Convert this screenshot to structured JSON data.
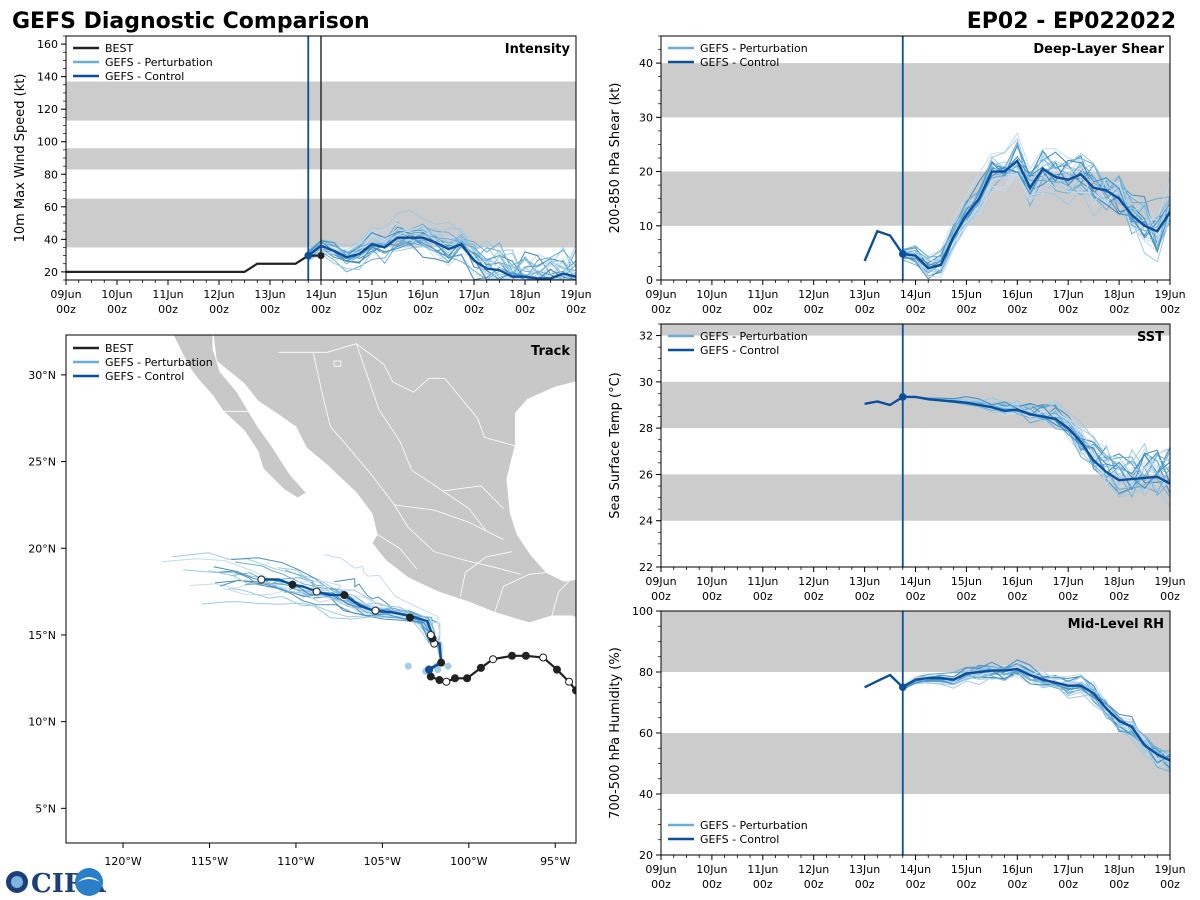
{
  "header": {
    "left_title": "GEFS Diagnostic Comparison",
    "right_title": "EP02 - EP022022"
  },
  "colors": {
    "best": "#222222",
    "perturbation": "#6aaed6",
    "control": "#0b4f9c",
    "band": "#cccccc",
    "land": "#c8c8c8"
  },
  "time_axis": {
    "labels_top": [
      "09Jun",
      "10Jun",
      "11Jun",
      "12Jun",
      "13Jun",
      "14Jun",
      "15Jun",
      "16Jun",
      "17Jun",
      "18Jun",
      "19Jun"
    ],
    "labels_bottom": [
      "00z",
      "00z",
      "00z",
      "00z",
      "00z",
      "00z",
      "00z",
      "00z",
      "00z",
      "00z",
      "00z"
    ],
    "init_day": 4.75,
    "best_end_day": 5.0
  },
  "legend": {
    "best": "BEST",
    "perturbation": "GEFS - Perturbation",
    "control": "GEFS - Control"
  },
  "logo": {
    "text": "CIRA"
  },
  "chart_data": [
    {
      "id": "intensity",
      "type": "line",
      "title": "Intensity",
      "ylabel": "10m Max Wind Speed (kt)",
      "ylim": [
        15,
        165
      ],
      "yticks": [
        20,
        40,
        60,
        80,
        100,
        120,
        140,
        160
      ],
      "bands": [
        [
          35,
          65
        ],
        [
          83,
          96
        ],
        [
          113,
          137
        ]
      ],
      "best": {
        "x": [
          0,
          0.5,
          1,
          1.5,
          2,
          2.5,
          3,
          3.5,
          3.75,
          4,
          4.25,
          4.5,
          4.75,
          5
        ],
        "y": [
          20,
          20,
          20,
          20,
          20,
          20,
          20,
          20,
          25,
          25,
          25,
          25,
          30,
          30
        ]
      },
      "control": {
        "x": [
          4.75,
          5,
          5.25,
          5.5,
          5.75,
          6,
          6.25,
          6.5,
          6.75,
          7,
          7.25,
          7.5,
          7.75,
          8,
          8.25,
          8.5,
          8.75,
          9,
          9.25,
          9.5,
          9.75,
          10
        ],
        "y": [
          30,
          36,
          33,
          29,
          31,
          37,
          35,
          41,
          41,
          41,
          38,
          34,
          37,
          27,
          22,
          21,
          17,
          17,
          16,
          16,
          19,
          17
        ]
      },
      "perturbation_count": 24
    },
    {
      "id": "shear",
      "type": "line",
      "title": "Deep-Layer Shear",
      "ylabel": "200-850 hPa Shear (kt)",
      "ylim": [
        0,
        45
      ],
      "yticks": [
        0,
        10,
        20,
        30,
        40
      ],
      "bands": [
        [
          10,
          20
        ],
        [
          30,
          40
        ]
      ],
      "control": {
        "x": [
          4,
          4.25,
          4.5,
          4.75,
          5,
          5.25,
          5.5,
          5.75,
          6,
          6.25,
          6.5,
          6.75,
          7,
          7.25,
          7.5,
          7.75,
          8,
          8.25,
          8.5,
          8.75,
          9,
          9.25,
          9.5,
          9.75,
          10
        ],
        "y": [
          3.5,
          9,
          8.2,
          4.8,
          4.5,
          2.2,
          2.8,
          8,
          12,
          15,
          20,
          20,
          22,
          17,
          20.5,
          19,
          18.5,
          19.5,
          17,
          16.5,
          15,
          12,
          10,
          9,
          12.5
        ]
      },
      "perturbation_count": 24
    },
    {
      "id": "sst",
      "type": "line",
      "title": "SST",
      "ylabel": "Sea Surface Temp (°C)",
      "ylim": [
        22,
        32.5
      ],
      "yticks": [
        22,
        24,
        26,
        28,
        30,
        32
      ],
      "bands": [
        [
          24,
          26
        ],
        [
          28,
          30
        ],
        [
          32,
          32.5
        ]
      ],
      "control": {
        "x": [
          4,
          4.25,
          4.5,
          4.75,
          5,
          5.25,
          5.5,
          5.75,
          6,
          6.25,
          6.5,
          6.75,
          7,
          7.25,
          7.5,
          7.75,
          8,
          8.25,
          8.5,
          8.75,
          9,
          9.25,
          9.5,
          9.75,
          10
        ],
        "y": [
          29.05,
          29.15,
          29,
          29.35,
          29.35,
          29.25,
          29.2,
          29.15,
          29.1,
          29,
          28.9,
          28.75,
          28.8,
          28.6,
          28.5,
          28.4,
          28,
          27.4,
          26.6,
          26.1,
          25.75,
          25.8,
          25.85,
          25.9,
          25.6
        ]
      },
      "perturbation_count": 24
    },
    {
      "id": "rh",
      "type": "line",
      "title": "Mid-Level RH",
      "ylabel": "700-500 hPa Humidity (%)",
      "ylim": [
        20,
        100
      ],
      "yticks": [
        20,
        40,
        60,
        80,
        100
      ],
      "bands": [
        [
          40,
          60
        ],
        [
          80,
          100
        ]
      ],
      "control": {
        "x": [
          4,
          4.25,
          4.5,
          4.75,
          5,
          5.25,
          5.5,
          5.75,
          6,
          6.25,
          6.5,
          6.75,
          7,
          7.25,
          7.5,
          7.75,
          8,
          8.25,
          8.5,
          8.75,
          9,
          9.25,
          9.5,
          9.75,
          10
        ],
        "y": [
          75,
          77,
          79,
          75,
          77.5,
          78,
          78,
          77.5,
          79.5,
          80,
          80.5,
          80.5,
          81,
          79,
          77.5,
          76.5,
          75.5,
          75.5,
          73,
          68,
          64,
          62,
          56,
          53,
          51
        ]
      },
      "perturbation_count": 24
    },
    {
      "id": "track",
      "type": "scatter",
      "title": "Track",
      "xticks": [
        "120°W",
        "115°W",
        "110°W",
        "105°W",
        "100°W",
        "95°W"
      ],
      "xtick_values": [
        -120,
        -115,
        -110,
        -105,
        -100,
        -95
      ],
      "yticks": [
        "5°N",
        "10°N",
        "15°N",
        "20°N",
        "25°N",
        "30°N"
      ],
      "ytick_values": [
        5,
        10,
        15,
        20,
        25,
        30
      ],
      "lon_range": [
        -123.3,
        -93.8
      ],
      "lat_range": [
        3,
        32.3
      ],
      "best": {
        "lon": [
          -93.8,
          -94.2,
          -94.9,
          -95.7,
          -96.7,
          -97.5,
          -98.6,
          -99.3,
          -100.1,
          -100.8,
          -101.3,
          -101.7,
          -102.2
        ],
        "lat": [
          11.8,
          12.3,
          13.0,
          13.7,
          13.8,
          13.8,
          13.6,
          13.1,
          12.5,
          12.5,
          12.3,
          12.4,
          12.6
        ]
      },
      "best_open": [
        false,
        true,
        false,
        true,
        false,
        false,
        true,
        false,
        false,
        false,
        true,
        false,
        false
      ],
      "control": {
        "lon": [
          -102.3,
          -101.6,
          -101.7,
          -102.0,
          -102.1,
          -102.4,
          -103.4,
          -104.4,
          -105.5,
          -106.3,
          -107.2,
          -108.0,
          -108.8,
          -109.6,
          -110.2,
          -111.0,
          -112.0
        ],
        "lat": [
          13.0,
          13.4,
          14.5,
          14.6,
          15.0,
          15.8,
          16.1,
          16.3,
          16.4,
          16.7,
          17.3,
          17.3,
          17.5,
          17.8,
          17.9,
          18.2,
          18.2
        ]
      },
      "control_markers": [
        [
          -102.3,
          13.0,
          "filled"
        ],
        [
          -101.6,
          13.4,
          "filled"
        ],
        [
          -102.0,
          14.5,
          "open"
        ],
        [
          -102.1,
          14.8,
          "filled"
        ],
        [
          -102.2,
          15.0,
          "open"
        ],
        [
          -103.4,
          16.0,
          "filled"
        ],
        [
          -105.4,
          16.4,
          "open"
        ],
        [
          -107.2,
          17.3,
          "filled"
        ],
        [
          -108.8,
          17.5,
          "open"
        ],
        [
          -110.2,
          17.9,
          "filled"
        ],
        [
          -112.0,
          18.2,
          "open"
        ]
      ],
      "perturbation_count": 24
    }
  ]
}
